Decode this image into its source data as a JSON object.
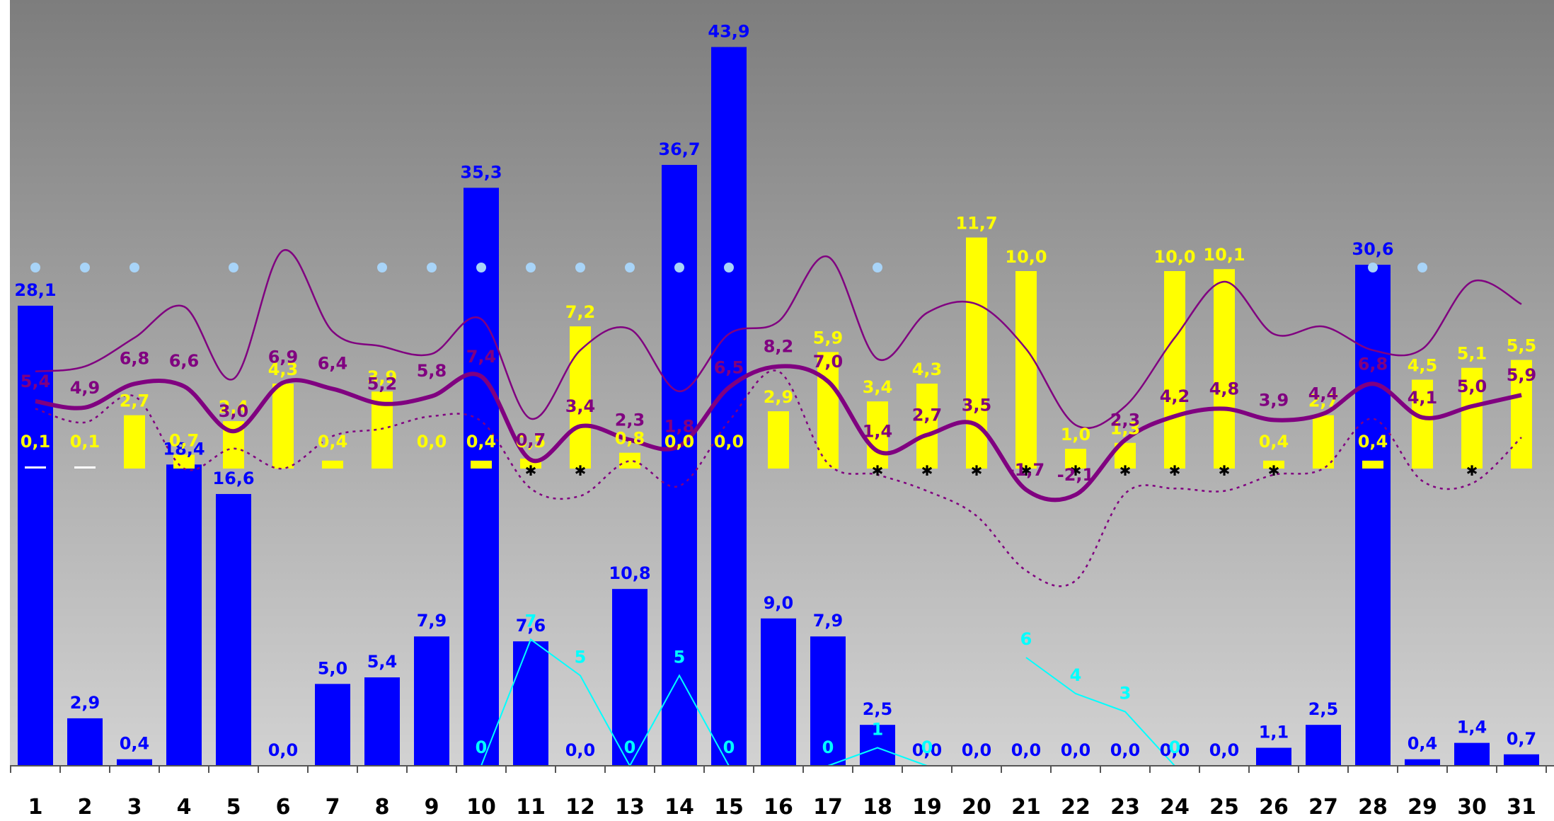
{
  "chart_data": {
    "type": "bar",
    "categories": [
      "1",
      "2",
      "3",
      "4",
      "5",
      "6",
      "7",
      "8",
      "9",
      "10",
      "11",
      "12",
      "13",
      "14",
      "15",
      "16",
      "17",
      "18",
      "19",
      "20",
      "21",
      "22",
      "23",
      "24",
      "25",
      "26",
      "27",
      "28",
      "29",
      "30",
      "31"
    ],
    "series": [
      {
        "key": "precip",
        "kind": "bar",
        "color": "#0000ff",
        "values": [
          28.1,
          2.9,
          0.4,
          18.4,
          16.6,
          0.0,
          5.0,
          5.4,
          7.9,
          35.3,
          7.6,
          0.0,
          10.8,
          36.7,
          43.9,
          9.0,
          7.9,
          2.5,
          0.0,
          0.0,
          0.0,
          0.0,
          0.0,
          0.0,
          0.0,
          1.1,
          2.5,
          30.6,
          0.4,
          1.4,
          0.7
        ],
        "labels": [
          "28,1",
          "2,9",
          "0,4",
          "18,4",
          "16,6",
          "0,0",
          "5,0",
          "5,4",
          "7,9",
          "35,3",
          "7,6",
          "0,0",
          "10,8",
          "36,7",
          "43,9",
          "9,0",
          "7,9",
          "2,5",
          "0,0",
          "0,0",
          "0,0",
          "0,0",
          "0,0",
          "0,0",
          "0,0",
          "1,1",
          "2,5",
          "30,6",
          "0,4",
          "1,4",
          "0,7"
        ]
      },
      {
        "key": "sunshine",
        "kind": "bar",
        "color": "#ffff00",
        "values": [
          0.1,
          0.1,
          2.7,
          0.7,
          2.4,
          4.3,
          0.4,
          3.9,
          0.0,
          0.4,
          0.5,
          7.2,
          0.8,
          0.0,
          0.0,
          2.9,
          5.9,
          3.4,
          4.3,
          11.7,
          10.0,
          1.0,
          1.3,
          10.0,
          10.1,
          0.4,
          2.7,
          0.4,
          4.5,
          5.1,
          5.5
        ],
        "labels": [
          "0,1",
          "0,1",
          "2,7",
          "0,7",
          "2,4",
          "4,3",
          "0,4",
          "3,9",
          "0,0",
          "0,4",
          "0,5",
          "7,2",
          "0,8",
          "0,0",
          "0,0",
          "2,9",
          "5,9",
          "3,4",
          "4,3",
          "11,7",
          "10,0",
          "1,0",
          "1,3",
          "10,0",
          "10,1",
          "0,4",
          "2,7",
          "0,4",
          "4,5",
          "5,1",
          "5,5"
        ]
      },
      {
        "key": "tmean",
        "kind": "line",
        "color": "#800080",
        "values": [
          5.4,
          4.9,
          6.8,
          6.6,
          3.0,
          6.9,
          6.4,
          5.2,
          5.8,
          7.4,
          0.7,
          3.4,
          2.3,
          1.8,
          6.5,
          8.2,
          7.0,
          1.4,
          2.7,
          3.5,
          -1.7,
          -2.1,
          2.3,
          4.2,
          4.8,
          3.9,
          4.4,
          6.8,
          4.1,
          5.0,
          5.9
        ],
        "labels": [
          "5,4",
          "4,9",
          "6,8",
          "6,6",
          "3,0",
          "6,9",
          "6,4",
          "5,2",
          "5,8",
          "7,4",
          "0,7",
          "3,4",
          "2,3",
          "1,8",
          "6,5",
          "8,2",
          "7,0",
          "1,4",
          "2,7",
          "3,5",
          "-1,7",
          "-2,1",
          "2,3",
          "4,2",
          "4,8",
          "3,9",
          "4,4",
          "6,8",
          "4,1",
          "5,0",
          "5,9"
        ],
        "label_visible": [
          true,
          true,
          false,
          false,
          true,
          false,
          false,
          true,
          false,
          true,
          true,
          true,
          true,
          true,
          true,
          true,
          true,
          true,
          true,
          true,
          true,
          true,
          true,
          true,
          true,
          true,
          true,
          true,
          true,
          true,
          true
        ]
      },
      {
        "key": "tmax",
        "kind": "line",
        "color": "#800080",
        "values": [
          7.8,
          8.2,
          10.5,
          13.0,
          7.2,
          17.5,
          11.0,
          9.8,
          9.2,
          12.0,
          4.0,
          9.5,
          11.2,
          6.2,
          10.8,
          11.8,
          17.0,
          8.8,
          12.5,
          13.2,
          9.6,
          3.5,
          5.0,
          10.5,
          15.0,
          10.8,
          11.4,
          9.5,
          9.6,
          15.0,
          13.2
        ]
      },
      {
        "key": "tmin",
        "kind": "line",
        "color": "#800080",
        "values": [
          4.8,
          3.7,
          5.8,
          0.0,
          1.6,
          0.0,
          2.6,
          3.2,
          4.2,
          3.8,
          -1.6,
          -2.2,
          0.6,
          -1.4,
          3.8,
          7.8,
          0.4,
          -0.5,
          -1.8,
          -3.8,
          -8.2,
          -9.0,
          -2.0,
          -1.6,
          -1.8,
          -0.5,
          0.0,
          4.0,
          -1.0,
          -1.2,
          2.5
        ]
      },
      {
        "key": "snow",
        "kind": "line",
        "color": "#00ffff",
        "values": [
          null,
          null,
          null,
          null,
          null,
          null,
          null,
          null,
          null,
          0,
          7,
          5,
          0,
          5,
          0,
          null,
          0,
          1,
          0,
          null,
          6,
          4,
          3,
          0,
          null,
          null,
          null,
          null,
          null,
          null,
          null
        ],
        "labels": [
          "",
          "",
          "",
          "",
          "",
          "",
          "",
          "",
          "",
          "0",
          "7",
          "5",
          "0",
          "5",
          "0",
          "",
          "0",
          "1",
          "0",
          "",
          "6",
          "4",
          "3",
          "0",
          "",
          "",
          "",
          "",
          "",
          "",
          ""
        ]
      }
    ],
    "markers": {
      "dots": [
        1,
        2,
        3,
        5,
        8,
        9,
        10,
        11,
        12,
        13,
        14,
        15,
        18,
        28,
        29
      ],
      "stars": [
        11,
        12,
        18,
        19,
        20,
        21,
        22,
        23,
        24,
        25,
        26,
        30
      ]
    },
    "ylim_precip": [
      0,
      50
    ],
    "ylim_temp": [
      -10,
      18
    ]
  }
}
